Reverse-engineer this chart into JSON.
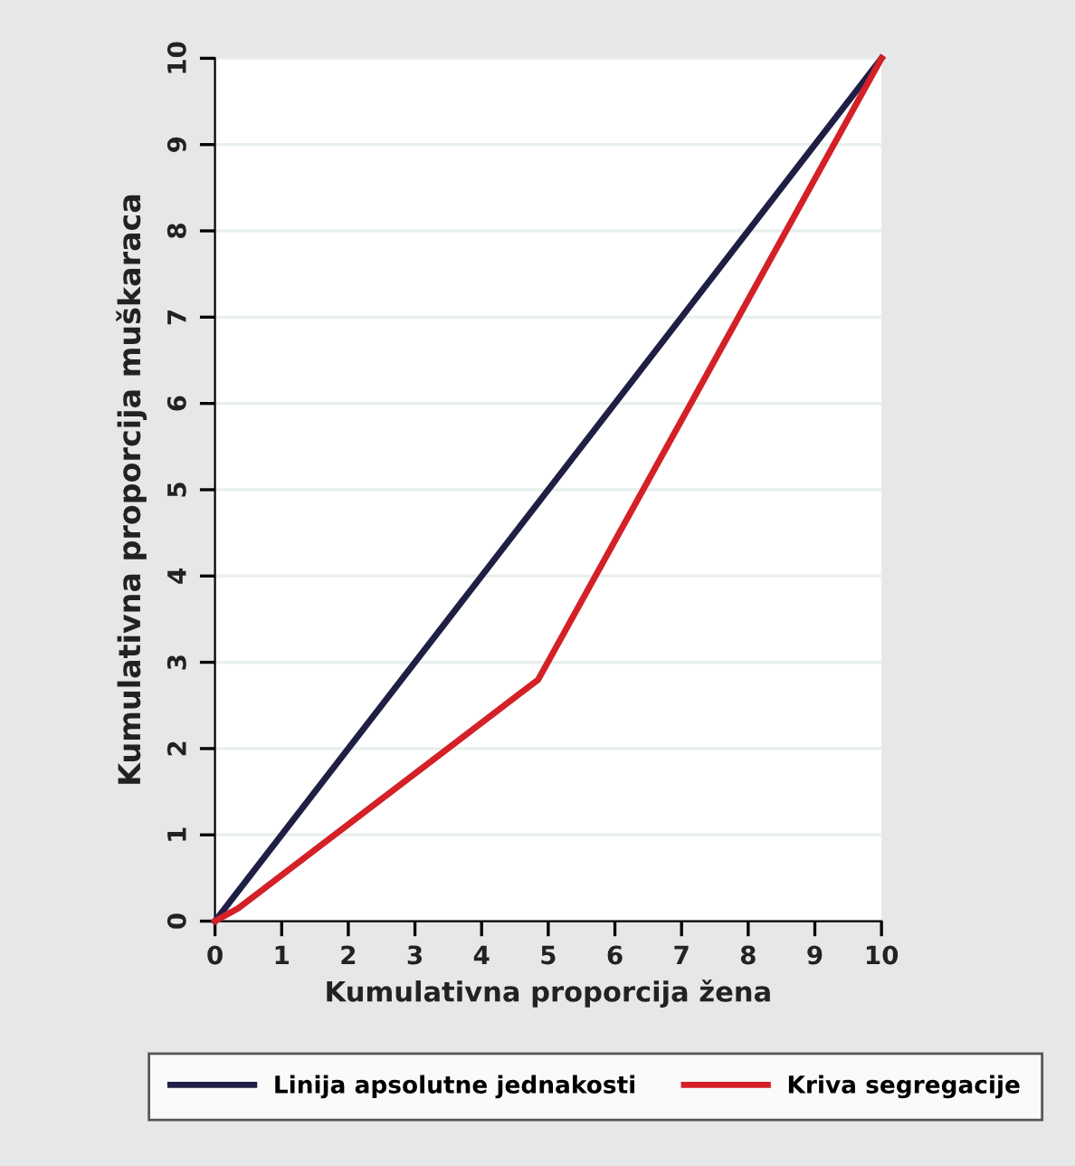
{
  "chart_data": {
    "type": "line",
    "xlabel": "Kumulativna proporcija žena",
    "ylabel": "Kumulativna proporcija muškaraca",
    "series": [
      {
        "name": "Linija apsolutne jednakosti",
        "color": "#1f1f45",
        "x": [
          0,
          10
        ],
        "values": [
          0,
          10
        ]
      },
      {
        "name": "Kriva segregacije",
        "color": "#d42027",
        "x": [
          0,
          0.35,
          4.85,
          10
        ],
        "values": [
          0,
          0.15,
          2.8,
          10
        ]
      }
    ],
    "xlim": [
      0,
      10
    ],
    "ylim": [
      0,
      10
    ],
    "xticks": [
      0,
      1,
      2,
      3,
      4,
      5,
      6,
      7,
      8,
      9,
      10
    ],
    "yticks": [
      0,
      1,
      2,
      3,
      4,
      5,
      6,
      7,
      8,
      9,
      10
    ],
    "grid": "y",
    "legend": "bottom",
    "marker": "none",
    "line_style": "solid"
  }
}
